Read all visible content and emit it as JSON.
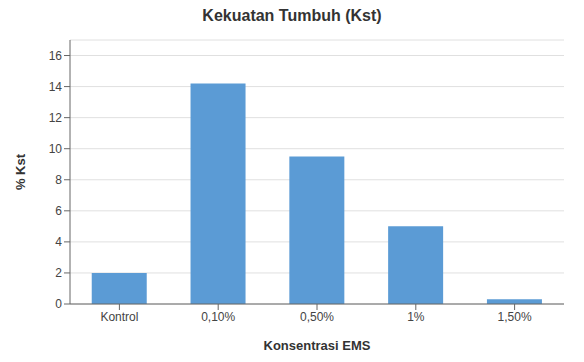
{
  "chart_data": {
    "type": "bar",
    "title": "Kekuatan Tumbuh (Kst)",
    "xlabel": "Konsentrasi EMS",
    "ylabel": "% Kst",
    "categories": [
      "Kontrol",
      "0,10%",
      "0,50%",
      "1%",
      "1,50%"
    ],
    "values": [
      2.0,
      14.2,
      9.5,
      5.0,
      0.3
    ],
    "color": "#5B9BD5",
    "ylim": [
      0,
      17
    ],
    "yticks": [
      0,
      2,
      4,
      6,
      8,
      10,
      12,
      14,
      16
    ],
    "grid": true
  }
}
